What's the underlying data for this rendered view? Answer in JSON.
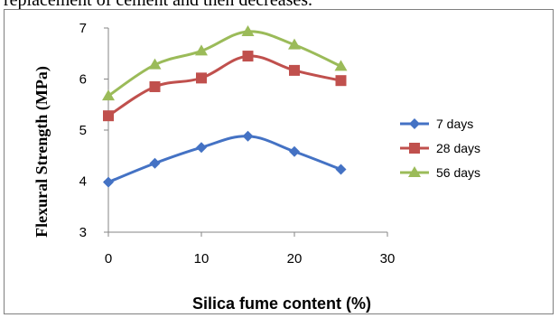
{
  "caption_fragment": "replacement of cement and then decreases.",
  "chart_data": {
    "type": "line",
    "title": "",
    "xlabel": "Silica fume content (%)",
    "ylabel": "Flexural Strength (MPa)",
    "xlim": [
      0,
      30
    ],
    "ylim": [
      3,
      7
    ],
    "x_ticks": [
      "0",
      "10",
      "20",
      "30"
    ],
    "y_ticks": [
      "3",
      "4",
      "5",
      "6",
      "7"
    ],
    "grid": false,
    "legend_position": "right",
    "x": [
      0,
      5,
      10,
      15,
      20,
      25
    ],
    "series": [
      {
        "name": "7 days",
        "color": "#4472C4",
        "marker": "diamond",
        "values": [
          3.98,
          4.35,
          4.66,
          4.88,
          4.58,
          4.23
        ]
      },
      {
        "name": "28 days",
        "color": "#C0504D",
        "marker": "square",
        "values": [
          5.28,
          5.85,
          6.02,
          6.45,
          6.17,
          5.97
        ]
      },
      {
        "name": "56 days",
        "color": "#9BBB59",
        "marker": "triangle",
        "values": [
          5.67,
          6.28,
          6.55,
          6.93,
          6.67,
          6.25
        ]
      }
    ]
  }
}
